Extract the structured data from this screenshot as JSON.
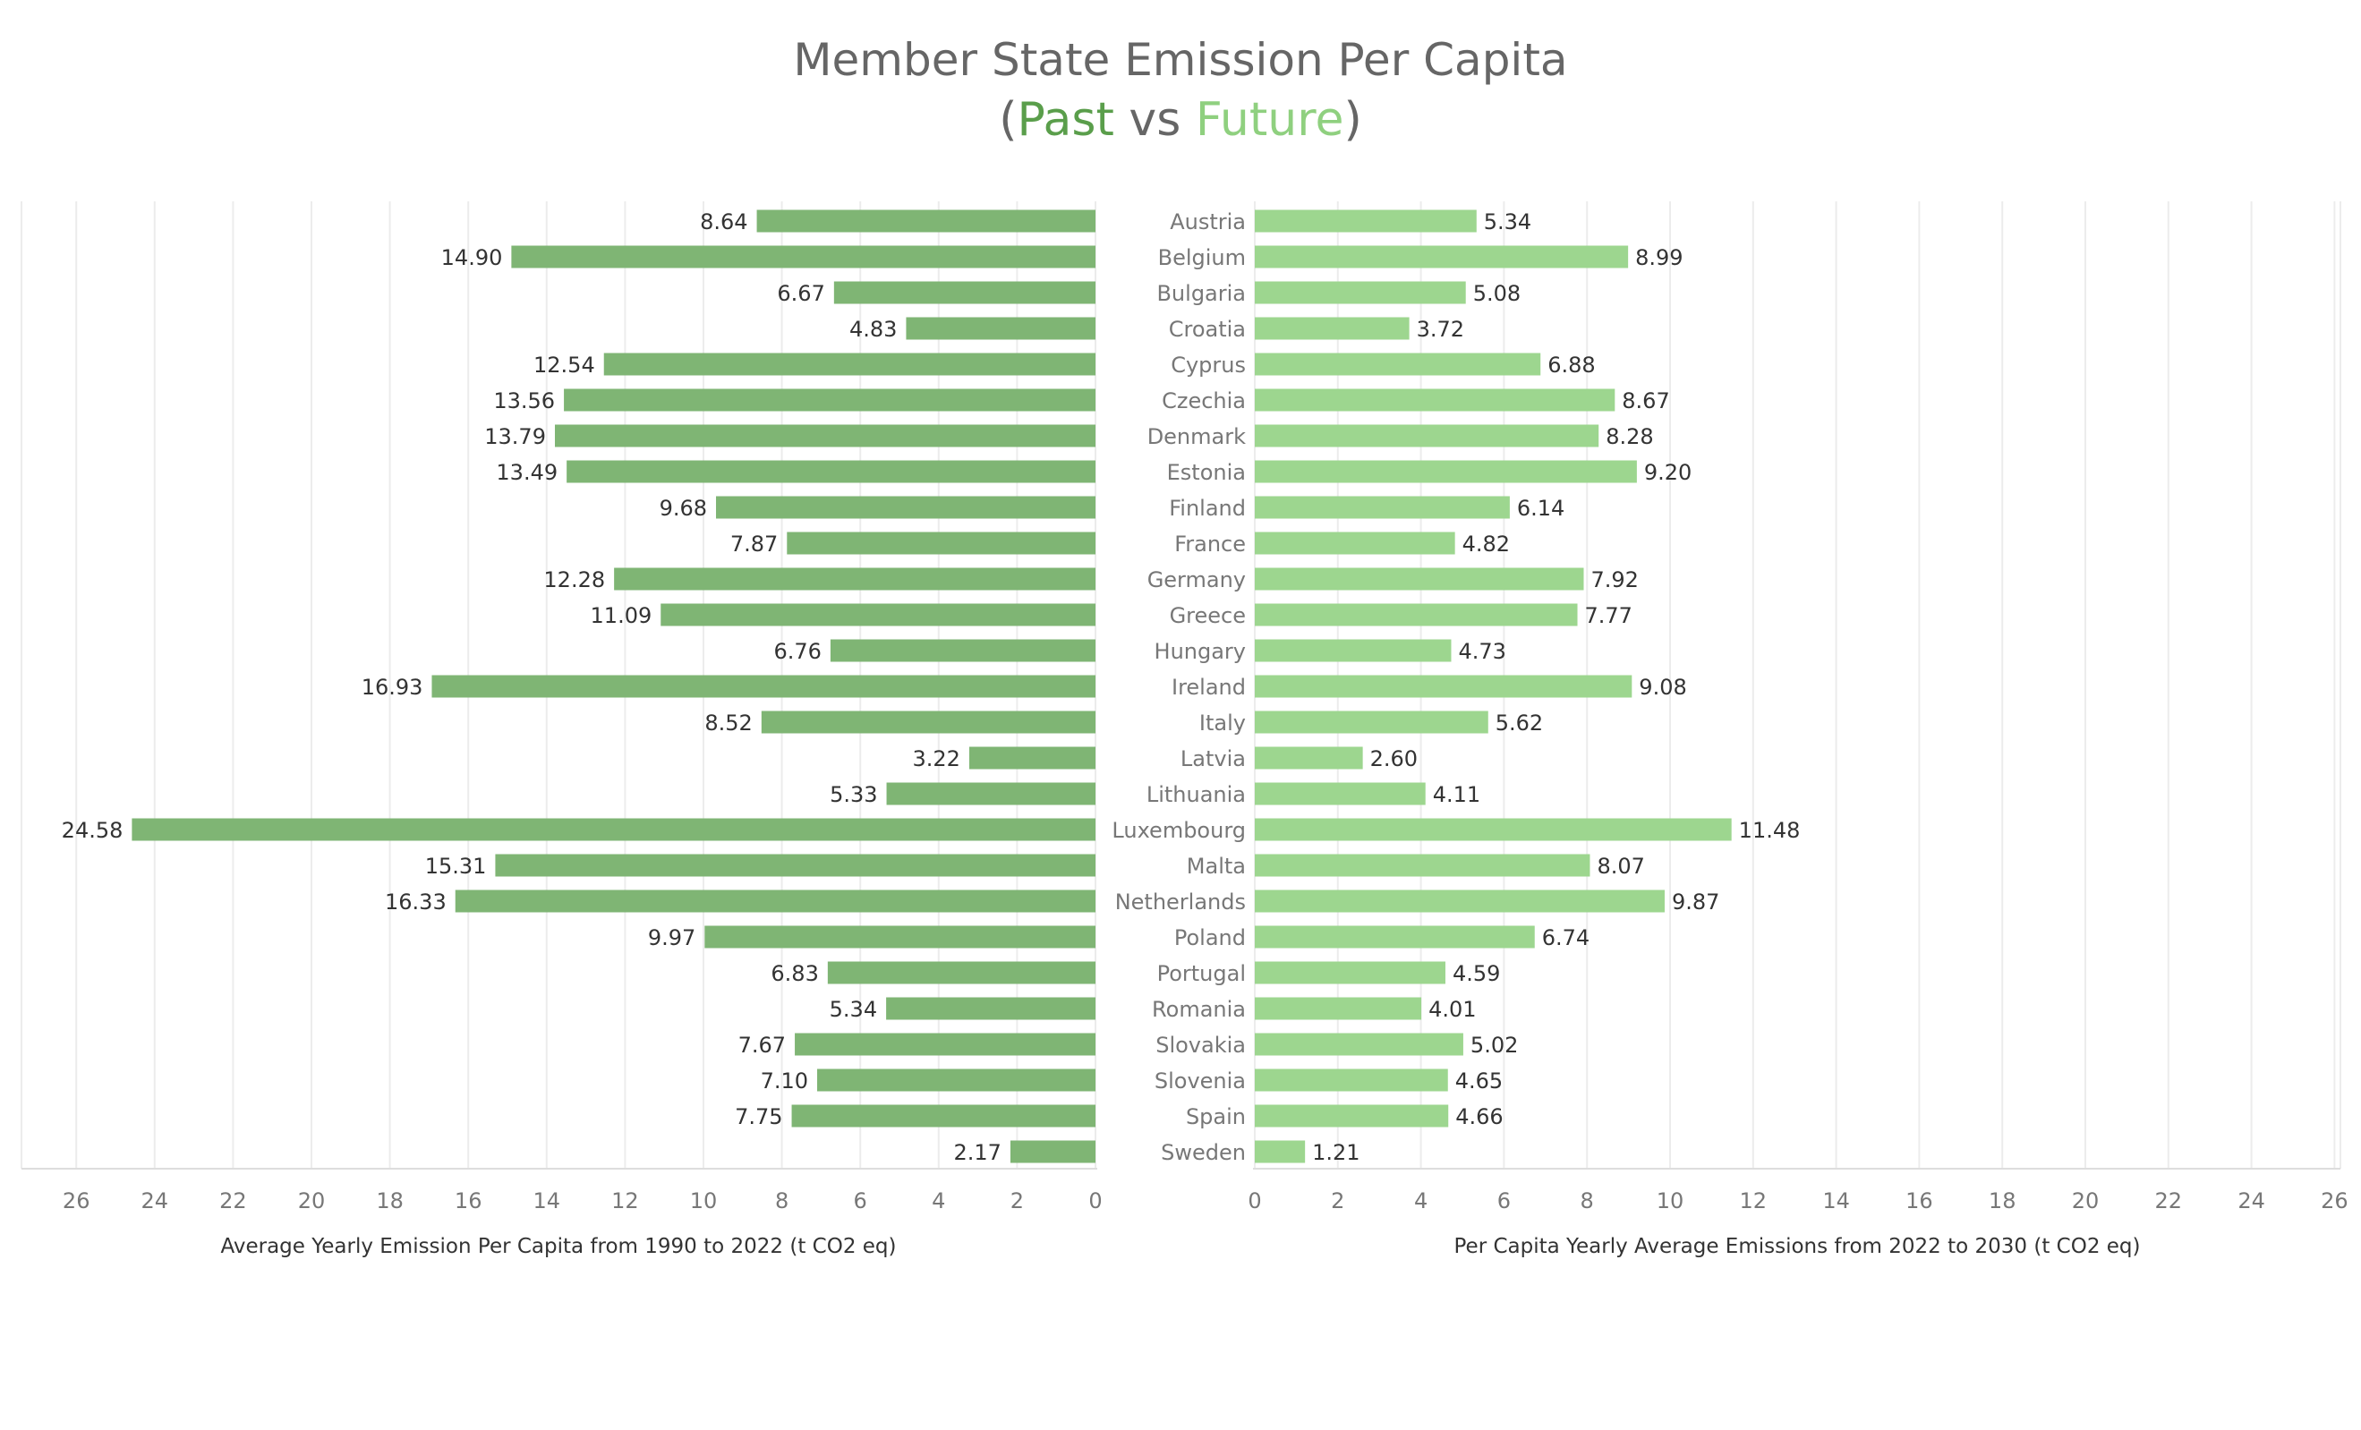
{
  "title": "Member State Emission Per Capita",
  "subtitle": {
    "open": "(",
    "past": "Past",
    "vs": " vs ",
    "future": "Future",
    "close": ")"
  },
  "colors": {
    "past": "#7fb574",
    "future": "#9dd68f",
    "past_title": "#5a9e4b",
    "future_title": "#8fd07f",
    "title": "#666666",
    "grid": "#ececec",
    "label": "#333333",
    "country": "#777777",
    "tick": "#777777"
  },
  "chart_data": [
    {
      "type": "bar",
      "orientation": "horizontal",
      "direction": "right-to-left",
      "xlabel": "Average Yearly Emission Per Capita from 1990 to 2022 (t CO2 eq)",
      "xlim": [
        0,
        26
      ],
      "xticks": [
        26,
        24,
        22,
        20,
        18,
        16,
        14,
        12,
        10,
        8,
        6,
        4,
        2,
        0
      ],
      "grid": true,
      "categories": [
        "Austria",
        "Belgium",
        "Bulgaria",
        "Croatia",
        "Cyprus",
        "Czechia",
        "Denmark",
        "Estonia",
        "Finland",
        "France",
        "Germany",
        "Greece",
        "Hungary",
        "Ireland",
        "Italy",
        "Latvia",
        "Lithuania",
        "Luxembourg",
        "Malta",
        "Netherlands",
        "Poland",
        "Portugal",
        "Romania",
        "Slovakia",
        "Slovenia",
        "Spain",
        "Sweden"
      ],
      "values": [
        8.64,
        14.9,
        6.67,
        4.83,
        12.54,
        13.56,
        13.79,
        13.49,
        9.68,
        7.87,
        12.28,
        11.09,
        6.76,
        16.93,
        8.52,
        3.22,
        5.33,
        24.58,
        15.31,
        16.33,
        9.97,
        6.83,
        5.34,
        7.67,
        7.1,
        7.75,
        2.17
      ],
      "labels": [
        "8.64",
        "14.90",
        "6.67",
        "4.83",
        "12.54",
        "13.56",
        "13.79",
        "13.49",
        "9.68",
        "7.87",
        "12.28",
        "11.09",
        "6.76",
        "16.93",
        "8.52",
        "3.22",
        "5.33",
        "24.58",
        "15.31",
        "16.33",
        "9.97",
        "6.83",
        "5.34",
        "7.67",
        "7.10",
        "7.75",
        "2.17"
      ]
    },
    {
      "type": "bar",
      "orientation": "horizontal",
      "direction": "left-to-right",
      "xlabel": "Per Capita Yearly Average Emissions from 2022 to 2030 (t CO2 eq)",
      "xlim": [
        0,
        26
      ],
      "xticks": [
        0,
        2,
        4,
        6,
        8,
        10,
        12,
        14,
        16,
        18,
        20,
        22,
        24,
        26
      ],
      "grid": true,
      "categories": [
        "Austria",
        "Belgium",
        "Bulgaria",
        "Croatia",
        "Cyprus",
        "Czechia",
        "Denmark",
        "Estonia",
        "Finland",
        "France",
        "Germany",
        "Greece",
        "Hungary",
        "Ireland",
        "Italy",
        "Latvia",
        "Lithuania",
        "Luxembourg",
        "Malta",
        "Netherlands",
        "Poland",
        "Portugal",
        "Romania",
        "Slovakia",
        "Slovenia",
        "Spain",
        "Sweden"
      ],
      "values": [
        5.34,
        8.99,
        5.08,
        3.72,
        6.88,
        8.67,
        8.28,
        9.2,
        6.14,
        4.82,
        7.92,
        7.77,
        4.73,
        9.08,
        5.62,
        2.6,
        4.11,
        11.48,
        8.07,
        9.87,
        6.74,
        4.59,
        4.01,
        5.02,
        4.65,
        4.66,
        1.21
      ],
      "labels": [
        "5.34",
        "8.99",
        "5.08",
        "3.72",
        "6.88",
        "8.67",
        "8.28",
        "9.20",
        "6.14",
        "4.82",
        "7.92",
        "7.77",
        "4.73",
        "9.08",
        "5.62",
        "2.60",
        "4.11",
        "11.48",
        "8.07",
        "9.87",
        "6.74",
        "4.59",
        "4.01",
        "5.02",
        "4.65",
        "4.66",
        "1.21"
      ]
    }
  ]
}
